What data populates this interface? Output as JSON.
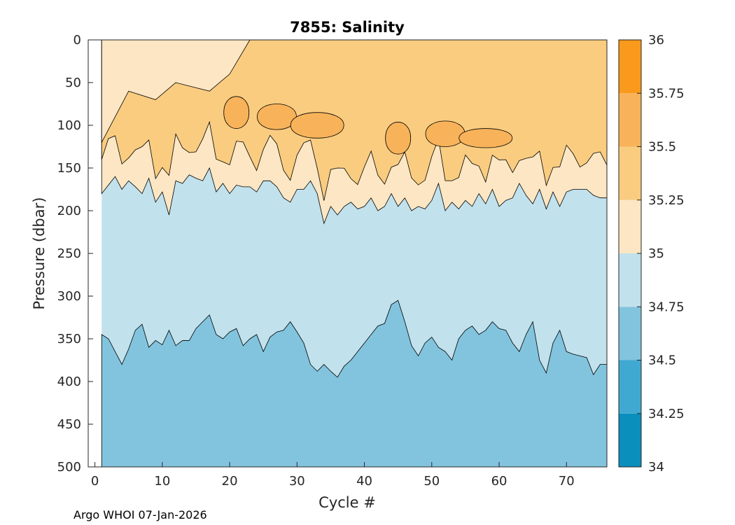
{
  "chart_data": {
    "type": "contour",
    "title": "7855:  Salinity",
    "xlabel": "Cycle #",
    "ylabel": "Pressure (dbar)",
    "xlim": [
      -1,
      76
    ],
    "ylim": [
      500,
      0
    ],
    "data_xrange": [
      1,
      76
    ],
    "x_ticks": [
      0,
      10,
      20,
      30,
      40,
      50,
      60,
      70
    ],
    "y_ticks": [
      0,
      50,
      100,
      150,
      200,
      250,
      300,
      350,
      400,
      450,
      500
    ],
    "colorbar": {
      "levels": [
        34,
        34.25,
        34.5,
        34.75,
        35,
        35.25,
        35.5,
        35.75,
        36
      ],
      "tick_labels": [
        "34",
        "34.25",
        "34.5",
        "34.75",
        "35",
        "35.25",
        "35.5",
        "35.75",
        "36"
      ],
      "colors": [
        "#0a8fbd",
        "#40a9d2",
        "#82c4de",
        "#c1e1ec",
        "#fce6c3",
        "#f9cc80",
        "#f8b35a",
        "#f99a1c"
      ]
    },
    "layers": [
      {
        "level": "34.5-34.75",
        "boundary_depth_top": {
          "x": [
            1,
            2,
            4,
            5,
            6,
            7,
            8,
            9,
            10,
            11,
            12,
            13,
            14,
            15,
            16,
            17,
            18,
            19,
            20,
            21,
            22,
            23,
            24,
            25,
            26,
            27,
            28,
            29,
            30,
            31,
            32,
            33,
            34,
            35,
            36,
            37,
            38,
            39,
            40,
            41,
            42,
            43,
            44,
            45,
            46,
            47,
            48,
            49,
            50,
            51,
            52,
            53,
            54,
            55,
            56,
            57,
            58,
            59,
            60,
            61,
            62,
            63,
            64,
            65,
            66,
            67,
            68,
            69,
            70,
            71,
            72,
            73,
            74,
            75,
            76
          ],
          "pressure": [
            345,
            350,
            380,
            362,
            340,
            333,
            360,
            352,
            357,
            340,
            358,
            352,
            352,
            338,
            330,
            322,
            345,
            350,
            342,
            338,
            358,
            350,
            345,
            365,
            348,
            342,
            340,
            330,
            342,
            355,
            380,
            388,
            380,
            388,
            395,
            382,
            375,
            365,
            355,
            345,
            335,
            332,
            310,
            305,
            330,
            358,
            370,
            355,
            348,
            360,
            365,
            375,
            350,
            340,
            335,
            345,
            340,
            330,
            338,
            340,
            355,
            365,
            345,
            330,
            375,
            390,
            355,
            340,
            365,
            368,
            370,
            372,
            392,
            380,
            380
          ]
        }
      },
      {
        "level": "35-35.25",
        "boundary_depth_bottom": {
          "x": [
            1,
            2,
            3,
            4,
            5,
            6,
            7,
            8,
            9,
            10,
            11,
            12,
            13,
            14,
            15,
            16,
            17,
            18,
            19,
            20,
            21,
            22,
            23,
            24,
            25,
            26,
            27,
            28,
            29,
            30,
            31,
            32,
            33,
            34,
            35,
            36,
            37,
            38,
            39,
            40,
            41,
            42,
            43,
            44,
            45,
            46,
            47,
            48,
            49,
            50,
            51,
            52,
            53,
            54,
            55,
            56,
            57,
            58,
            59,
            60,
            61,
            62,
            63,
            64,
            65,
            66,
            67,
            68,
            69,
            70,
            71,
            72,
            73,
            74,
            75,
            76
          ],
          "pressure": [
            180,
            170,
            160,
            175,
            165,
            172,
            180,
            162,
            190,
            178,
            205,
            165,
            168,
            158,
            162,
            165,
            150,
            178,
            168,
            180,
            170,
            172,
            172,
            178,
            165,
            165,
            172,
            185,
            190,
            175,
            175,
            165,
            180,
            215,
            195,
            205,
            195,
            190,
            198,
            195,
            185,
            200,
            195,
            180,
            195,
            185,
            200,
            195,
            198,
            188,
            168,
            200,
            190,
            198,
            188,
            195,
            180,
            192,
            175,
            195,
            188,
            185,
            168,
            182,
            192,
            175,
            198,
            178,
            195,
            178,
            175,
            175,
            175,
            182,
            185,
            185
          ]
        }
      },
      {
        "level": "35.5-35.75",
        "cores": [
          {
            "cycle": 21,
            "pressure_top": 60,
            "pressure_bottom": 110
          },
          {
            "cycle": 27,
            "pressure_top": 70,
            "pressure_bottom": 110
          },
          {
            "cycle": 33,
            "pressure_top": 80,
            "pressure_bottom": 120
          },
          {
            "cycle": 45,
            "pressure_top": 90,
            "pressure_bottom": 140
          },
          {
            "cycle": 52,
            "pressure_top": 90,
            "pressure_bottom": 130
          },
          {
            "cycle": 58,
            "pressure_top": 100,
            "pressure_bottom": 130
          }
        ]
      }
    ]
  },
  "footer": "Argo WHOI 07-Jan-2026"
}
